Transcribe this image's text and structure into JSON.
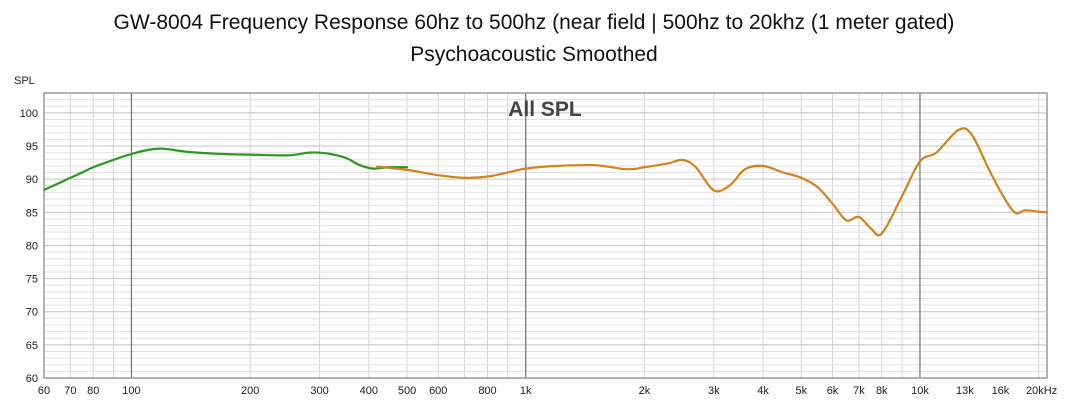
{
  "chart_data": {
    "type": "line",
    "title": "GW-8004 Frequency Response 60hz to 500hz (near field | 500hz to 20khz (1 meter gated)",
    "subtitle": "Psychoacoustic Smoothed",
    "panel_label": "All SPL",
    "ylabel": "SPL",
    "xlabel": "",
    "x_scale": "log",
    "xlim": [
      60,
      21000
    ],
    "ylim": [
      60,
      103
    ],
    "grid": true,
    "y_ticks": [
      60,
      65,
      70,
      75,
      80,
      85,
      90,
      95,
      100
    ],
    "x_ticks": [
      {
        "value": 60,
        "label": "60"
      },
      {
        "value": 70,
        "label": "70"
      },
      {
        "value": 80,
        "label": "80"
      },
      {
        "value": 100,
        "label": "100"
      },
      {
        "value": 200,
        "label": "200"
      },
      {
        "value": 300,
        "label": "300"
      },
      {
        "value": 400,
        "label": "400"
      },
      {
        "value": 500,
        "label": "500"
      },
      {
        "value": 600,
        "label": "600"
      },
      {
        "value": 800,
        "label": "800"
      },
      {
        "value": 1000,
        "label": "1k"
      },
      {
        "value": 2000,
        "label": "2k"
      },
      {
        "value": 3000,
        "label": "3k"
      },
      {
        "value": 4000,
        "label": "4k"
      },
      {
        "value": 5000,
        "label": "5k"
      },
      {
        "value": 6000,
        "label": "6k"
      },
      {
        "value": 7000,
        "label": "7k"
      },
      {
        "value": 8000,
        "label": "8k"
      },
      {
        "value": 10000,
        "label": "10k"
      },
      {
        "value": 13000,
        "label": "13k"
      },
      {
        "value": 16000,
        "label": "16k"
      },
      {
        "value": 20000,
        "label": "20kHz"
      }
    ],
    "series": [
      {
        "color": "#2a9a1e",
        "x": [
          60,
          65,
          70,
          75,
          80,
          90,
          100,
          110,
          120,
          140,
          170,
          200,
          250,
          280,
          300,
          320,
          350,
          380,
          410,
          450,
          500
        ],
        "y": [
          88.4,
          89.3,
          90.2,
          91.0,
          91.8,
          92.9,
          93.8,
          94.4,
          94.6,
          94.1,
          93.8,
          93.7,
          93.6,
          94.0,
          94.0,
          93.8,
          93.2,
          92.1,
          91.6,
          91.8,
          91.8
        ]
      },
      {
        "color": "#d4821c",
        "x": [
          420,
          500,
          600,
          700,
          800,
          900,
          1000,
          1200,
          1500,
          1800,
          2000,
          2300,
          2500,
          2700,
          3000,
          3300,
          3600,
          4000,
          4500,
          5000,
          5500,
          6000,
          6500,
          7000,
          7500,
          8000,
          9000,
          10000,
          11000,
          12500,
          13500,
          15000,
          16500,
          17500,
          18500,
          20000,
          21000
        ],
        "y": [
          91.9,
          91.4,
          90.6,
          90.2,
          90.4,
          91.0,
          91.6,
          92.0,
          92.1,
          91.5,
          91.8,
          92.4,
          92.9,
          91.8,
          88.3,
          89.1,
          91.5,
          92.0,
          91.0,
          90.2,
          88.8,
          86.3,
          83.8,
          84.3,
          82.6,
          81.8,
          87.4,
          92.7,
          94.0,
          97.4,
          96.8,
          91.3,
          86.8,
          84.9,
          85.3,
          85.1,
          85.0
        ]
      }
    ]
  }
}
